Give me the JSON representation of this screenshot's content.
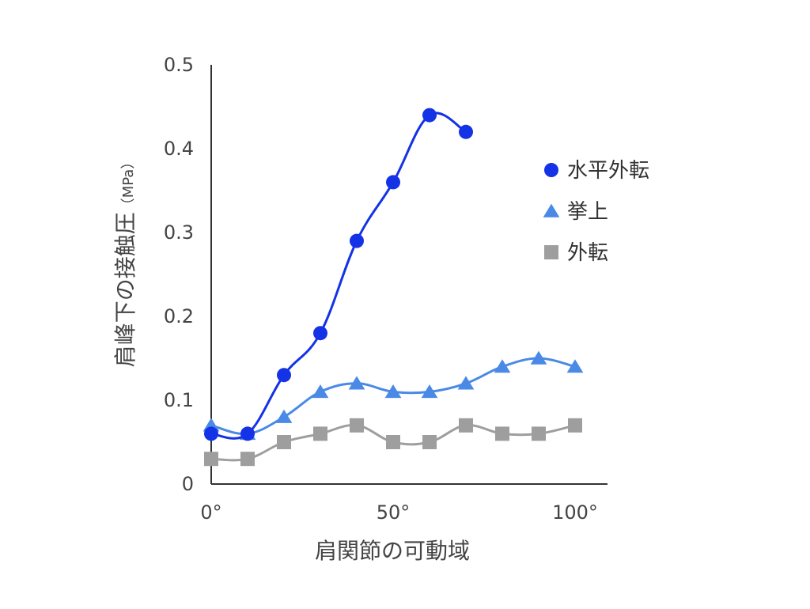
{
  "chart_data": {
    "type": "line",
    "xlabel": "肩関節の可動域",
    "ylabel": "肩峰下の接触圧",
    "ylabel_unit": "（MPa）",
    "xlim": [
      0,
      100
    ],
    "ylim": [
      0,
      0.5
    ],
    "x_ticks": [
      {
        "value": 0,
        "label": "0°"
      },
      {
        "value": 50,
        "label": "50°"
      },
      {
        "value": 100,
        "label": "100°"
      }
    ],
    "y_ticks": [
      {
        "value": 0,
        "label": "0"
      },
      {
        "value": 0.1,
        "label": "0.1"
      },
      {
        "value": 0.2,
        "label": "0.2"
      },
      {
        "value": 0.3,
        "label": "0.3"
      },
      {
        "value": 0.4,
        "label": "0.4"
      },
      {
        "value": 0.5,
        "label": "0.5"
      }
    ],
    "grid": false,
    "legend_position": "right",
    "series": [
      {
        "name": "水平外転",
        "marker": "circle",
        "color": "#1432e6",
        "x": [
          0,
          10,
          20,
          30,
          40,
          50,
          60,
          70
        ],
        "y": [
          0.06,
          0.06,
          0.13,
          0.18,
          0.29,
          0.36,
          0.44,
          0.42
        ]
      },
      {
        "name": "挙上",
        "marker": "triangle",
        "color": "#4a8ae6",
        "x": [
          0,
          10,
          20,
          30,
          40,
          50,
          60,
          70,
          80,
          90,
          100
        ],
        "y": [
          0.07,
          0.06,
          0.08,
          0.11,
          0.12,
          0.11,
          0.11,
          0.12,
          0.14,
          0.15,
          0.14
        ]
      },
      {
        "name": "外転",
        "marker": "square",
        "color": "#9e9e9e",
        "x": [
          0,
          10,
          20,
          30,
          40,
          50,
          60,
          70,
          80,
          90,
          100
        ],
        "y": [
          0.03,
          0.03,
          0.05,
          0.06,
          0.07,
          0.05,
          0.05,
          0.07,
          0.06,
          0.06,
          0.07
        ]
      }
    ]
  }
}
